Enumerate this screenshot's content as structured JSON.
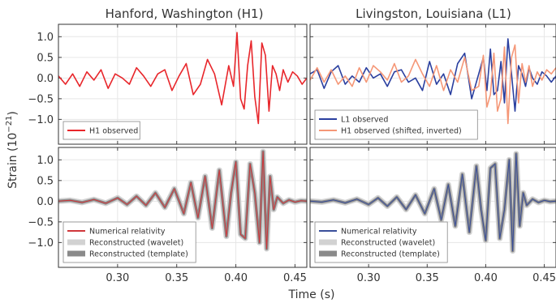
{
  "figure": {
    "panel_titles": [
      "Hanford, Washington (H1)",
      "Livingston, Louisiana (L1)"
    ],
    "ylabel_main": "Strain (10",
    "ylabel_exp": "−21",
    "ylabel_close": ")",
    "xlabel": "Time (s)"
  },
  "legends": {
    "h1_top": [
      {
        "label": "H1 observed",
        "color": "#e8262b",
        "kind": "line"
      }
    ],
    "l1_top": [
      {
        "label": "L1 observed",
        "color": "#2a3f9f",
        "kind": "line"
      },
      {
        "label": "H1 observed (shifted, inverted)",
        "color": "#f59777",
        "kind": "line"
      }
    ],
    "h1_bottom": [
      {
        "label": "Numerical relativity",
        "color": "#d0373b",
        "kind": "line"
      },
      {
        "label": "Reconstructed (wavelet)",
        "color": "#d2d2d2",
        "kind": "band"
      },
      {
        "label": "Reconstructed (template)",
        "color": "#8a8a8a",
        "kind": "band"
      }
    ],
    "l1_bottom": [
      {
        "label": "Numerical relativity",
        "color": "#3a4f9a",
        "kind": "line"
      },
      {
        "label": "Reconstructed (wavelet)",
        "color": "#d2d2d2",
        "kind": "band"
      },
      {
        "label": "Reconstructed (template)",
        "color": "#8a8a8a",
        "kind": "band"
      }
    ]
  },
  "chart_data": {
    "type": "line",
    "layout": "2x2 grid, shared axes",
    "xlim": [
      0.25,
      0.46
    ],
    "ylim": [
      -1.6,
      1.3
    ],
    "x_ticks": [
      0.3,
      0.35,
      0.4,
      0.45
    ],
    "x_tick_labels": [
      "0.30",
      "0.35",
      "0.40",
      "0.45"
    ],
    "y_ticks": [
      1.0,
      0.5,
      0.0,
      -0.5,
      -1.0
    ],
    "y_tick_labels": [
      "1.0",
      "0.5",
      "0.0",
      "−0.5",
      "−1.0"
    ],
    "grid": true,
    "legend_position": "lower-left",
    "series": [
      {
        "name": "H1 observed",
        "panel": "top-left",
        "color": "#e8262b",
        "x": [
          0.25,
          0.256,
          0.262,
          0.268,
          0.274,
          0.28,
          0.286,
          0.292,
          0.298,
          0.304,
          0.31,
          0.316,
          0.322,
          0.328,
          0.334,
          0.34,
          0.346,
          0.352,
          0.358,
          0.364,
          0.37,
          0.376,
          0.382,
          0.388,
          0.394,
          0.398,
          0.401,
          0.404,
          0.407,
          0.41,
          0.413,
          0.416,
          0.419,
          0.422,
          0.425,
          0.428,
          0.431,
          0.434,
          0.437,
          0.44,
          0.444,
          0.448,
          0.452,
          0.456,
          0.46
        ],
        "y": [
          0.05,
          -0.15,
          0.1,
          -0.2,
          0.15,
          -0.05,
          0.2,
          -0.25,
          0.1,
          0.0,
          -0.15,
          0.25,
          0.05,
          -0.2,
          0.1,
          0.2,
          -0.3,
          0.05,
          0.35,
          -0.4,
          -0.15,
          0.45,
          0.1,
          -0.65,
          0.3,
          -0.2,
          1.1,
          -0.5,
          -0.75,
          0.3,
          0.9,
          -0.45,
          -1.1,
          0.85,
          0.55,
          -0.8,
          0.3,
          0.1,
          -0.3,
          0.2,
          -0.1,
          0.15,
          0.05,
          -0.15,
          0.0
        ]
      },
      {
        "name": "L1 observed",
        "panel": "top-right",
        "color": "#2a3f9f",
        "x": [
          0.25,
          0.256,
          0.262,
          0.268,
          0.274,
          0.28,
          0.286,
          0.292,
          0.298,
          0.304,
          0.31,
          0.316,
          0.322,
          0.328,
          0.334,
          0.34,
          0.346,
          0.352,
          0.358,
          0.364,
          0.37,
          0.376,
          0.382,
          0.388,
          0.394,
          0.398,
          0.401,
          0.404,
          0.407,
          0.41,
          0.413,
          0.416,
          0.419,
          0.422,
          0.425,
          0.428,
          0.431,
          0.434,
          0.437,
          0.44,
          0.444,
          0.448,
          0.452,
          0.456,
          0.46
        ],
        "y": [
          0.1,
          0.2,
          -0.25,
          0.15,
          0.3,
          -0.15,
          0.05,
          -0.1,
          0.25,
          0.0,
          0.1,
          -0.2,
          0.15,
          0.2,
          -0.1,
          0.0,
          -0.3,
          0.4,
          -0.15,
          0.1,
          -0.4,
          0.35,
          0.6,
          -0.5,
          0.1,
          0.5,
          -0.3,
          0.7,
          -0.4,
          -0.3,
          0.4,
          -0.6,
          0.95,
          0.1,
          -0.8,
          0.3,
          0.1,
          -0.2,
          0.25,
          0.0,
          -0.15,
          0.15,
          0.05,
          -0.1,
          0.05
        ]
      },
      {
        "name": "H1 observed (shifted, inverted)",
        "panel": "top-right",
        "color": "#f59777",
        "x": [
          0.25,
          0.256,
          0.262,
          0.268,
          0.274,
          0.28,
          0.286,
          0.292,
          0.298,
          0.304,
          0.31,
          0.316,
          0.322,
          0.328,
          0.334,
          0.34,
          0.346,
          0.352,
          0.358,
          0.364,
          0.37,
          0.376,
          0.382,
          0.388,
          0.394,
          0.398,
          0.401,
          0.404,
          0.407,
          0.41,
          0.413,
          0.416,
          0.419,
          0.422,
          0.425,
          0.428,
          0.431,
          0.434,
          0.437,
          0.44,
          0.444,
          0.448,
          0.452,
          0.456,
          0.46
        ],
        "y": [
          -0.05,
          0.25,
          -0.1,
          0.2,
          -0.15,
          0.05,
          -0.2,
          0.25,
          -0.1,
          0.3,
          0.15,
          -0.05,
          0.35,
          -0.1,
          0.05,
          0.45,
          0.1,
          -0.2,
          0.3,
          -0.3,
          0.2,
          -0.1,
          0.5,
          -0.3,
          -0.2,
          0.55,
          -0.7,
          -0.4,
          0.6,
          -0.8,
          -0.5,
          0.75,
          -1.1,
          0.5,
          0.8,
          -0.6,
          0.35,
          -0.1,
          0.3,
          -0.2,
          0.15,
          -0.05,
          0.2,
          0.1,
          0.25
        ]
      },
      {
        "name": "Numerical relativity",
        "panel": "bottom-left",
        "color": "#d0373b",
        "x": [
          0.25,
          0.26,
          0.27,
          0.28,
          0.29,
          0.3,
          0.308,
          0.316,
          0.324,
          0.332,
          0.34,
          0.348,
          0.356,
          0.362,
          0.368,
          0.374,
          0.38,
          0.386,
          0.392,
          0.396,
          0.4,
          0.404,
          0.408,
          0.412,
          0.416,
          0.42,
          0.423,
          0.426,
          0.429,
          0.432,
          0.435,
          0.44,
          0.445,
          0.45,
          0.455,
          0.46
        ],
        "y": [
          0.0,
          0.02,
          -0.03,
          0.04,
          -0.05,
          0.08,
          -0.08,
          0.12,
          -0.1,
          0.2,
          -0.15,
          0.3,
          -0.3,
          0.45,
          -0.4,
          0.6,
          -0.65,
          0.75,
          -0.85,
          0.2,
          0.95,
          -0.8,
          -0.9,
          0.9,
          0.2,
          -1.0,
          1.2,
          -1.15,
          0.6,
          -0.2,
          0.1,
          -0.05,
          0.03,
          -0.02,
          0.01,
          0.0
        ]
      },
      {
        "name": "Numerical relativity",
        "panel": "bottom-right",
        "color": "#3a4f9a",
        "x": [
          0.25,
          0.26,
          0.27,
          0.28,
          0.29,
          0.3,
          0.308,
          0.316,
          0.324,
          0.332,
          0.34,
          0.348,
          0.356,
          0.362,
          0.368,
          0.374,
          0.38,
          0.386,
          0.392,
          0.396,
          0.4,
          0.404,
          0.408,
          0.412,
          0.416,
          0.42,
          0.423,
          0.426,
          0.429,
          0.432,
          0.435,
          0.44,
          0.445,
          0.45,
          0.455,
          0.46
        ],
        "y": [
          0.0,
          -0.02,
          0.03,
          -0.04,
          0.05,
          -0.08,
          0.08,
          -0.12,
          0.1,
          -0.2,
          0.15,
          -0.3,
          0.3,
          -0.45,
          0.4,
          -0.6,
          0.65,
          -0.75,
          0.85,
          -0.2,
          -0.95,
          0.8,
          0.9,
          -0.9,
          -0.2,
          1.0,
          -1.2,
          1.15,
          -0.6,
          0.2,
          -0.1,
          0.05,
          -0.03,
          0.02,
          -0.01,
          0.0
        ]
      }
    ]
  }
}
